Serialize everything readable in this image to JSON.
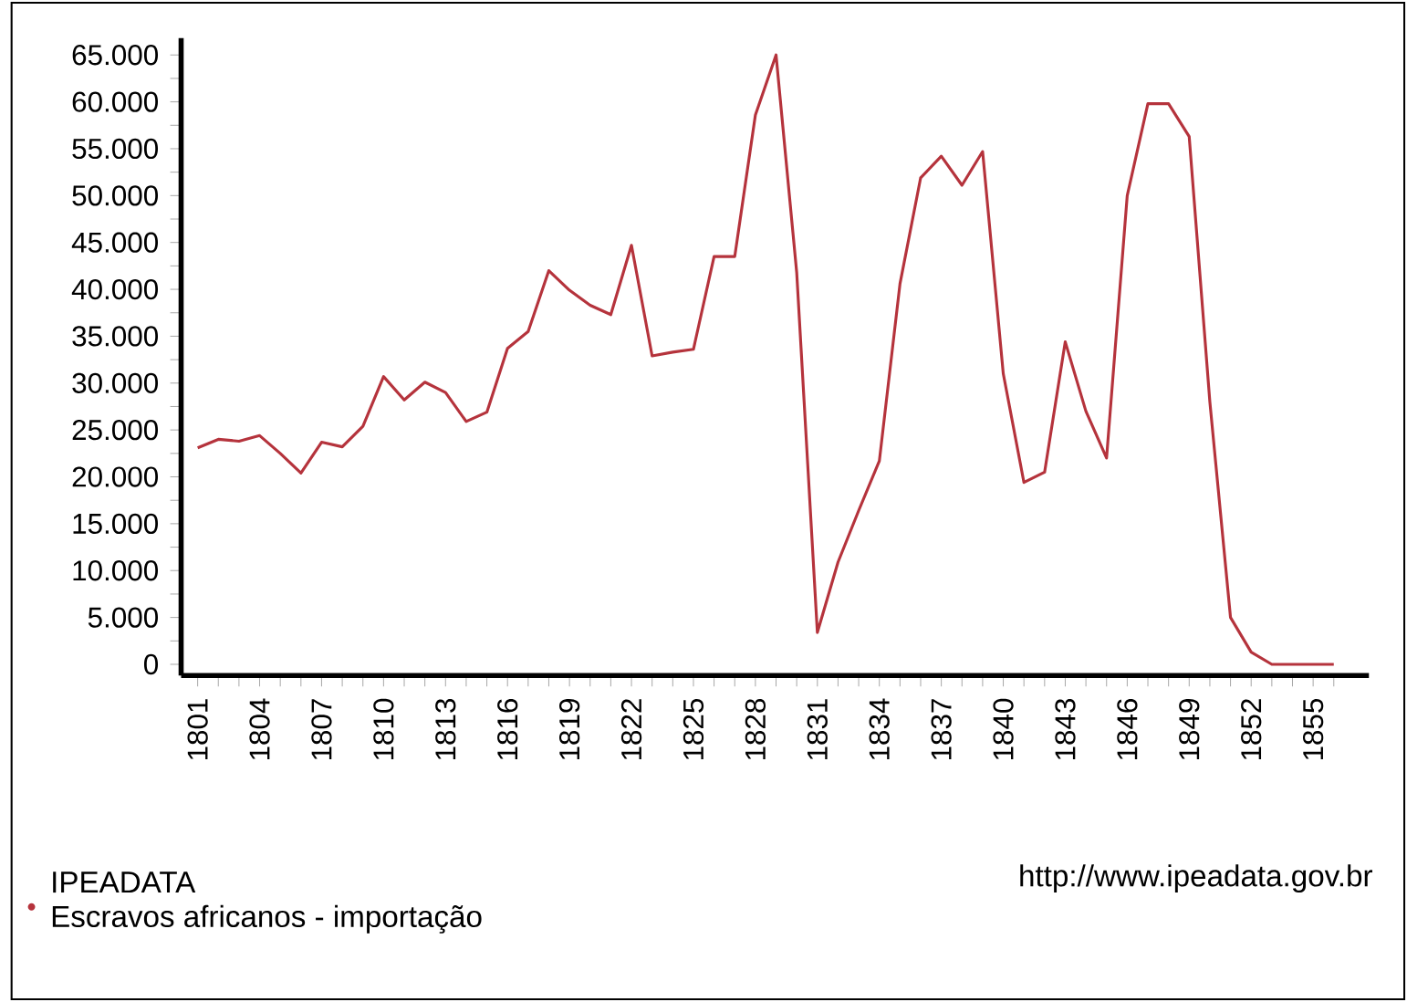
{
  "chart_data": {
    "type": "line",
    "legend_title": "IPEADATA",
    "legend": "bottom left",
    "marker": "none",
    "line_style": "solid",
    "x": [
      1801,
      1802,
      1803,
      1804,
      1805,
      1806,
      1807,
      1808,
      1809,
      1810,
      1811,
      1812,
      1813,
      1814,
      1815,
      1816,
      1817,
      1818,
      1819,
      1820,
      1821,
      1822,
      1823,
      1824,
      1825,
      1826,
      1827,
      1828,
      1829,
      1830,
      1831,
      1832,
      1833,
      1834,
      1835,
      1836,
      1837,
      1838,
      1839,
      1840,
      1841,
      1842,
      1843,
      1844,
      1845,
      1846,
      1847,
      1848,
      1849,
      1850,
      1851,
      1852,
      1853,
      1854,
      1855,
      1856
    ],
    "series": [
      {
        "name": "Escravos africanos - importação",
        "color": "#b5333c",
        "values": [
          23100,
          24000,
          23800,
          24400,
          22500,
          20400,
          23700,
          23200,
          25400,
          30700,
          28200,
          30100,
          29000,
          25900,
          26900,
          33700,
          35500,
          42000,
          39900,
          38300,
          37300,
          44700,
          32900,
          33300,
          33600,
          43500,
          43500,
          58600,
          65000,
          41800,
          3400,
          10900,
          16400,
          21700,
          40600,
          51900,
          54200,
          51100,
          54700,
          31000,
          19400,
          20500,
          34400,
          27000,
          22000,
          50000,
          59800,
          59800,
          56300,
          28000,
          5000,
          1300,
          0,
          0,
          0,
          0
        ]
      }
    ],
    "xlim": [
      1800.2,
      1857.7
    ],
    "ylim": [
      -1200,
      66800
    ],
    "xticks": [
      {
        "value": 1801,
        "label": "1801"
      },
      {
        "value": 1802,
        "label": null
      },
      {
        "value": 1803,
        "label": null
      },
      {
        "value": 1804,
        "label": "1804"
      },
      {
        "value": 1805,
        "label": null
      },
      {
        "value": 1806,
        "label": null
      },
      {
        "value": 1807,
        "label": "1807"
      },
      {
        "value": 1808,
        "label": null
      },
      {
        "value": 1809,
        "label": null
      },
      {
        "value": 1810,
        "label": "1810"
      },
      {
        "value": 1811,
        "label": null
      },
      {
        "value": 1812,
        "label": null
      },
      {
        "value": 1813,
        "label": "1813"
      },
      {
        "value": 1814,
        "label": null
      },
      {
        "value": 1815,
        "label": null
      },
      {
        "value": 1816,
        "label": "1816"
      },
      {
        "value": 1817,
        "label": null
      },
      {
        "value": 1818,
        "label": null
      },
      {
        "value": 1819,
        "label": "1819"
      },
      {
        "value": 1820,
        "label": null
      },
      {
        "value": 1821,
        "label": null
      },
      {
        "value": 1822,
        "label": "1822"
      },
      {
        "value": 1823,
        "label": null
      },
      {
        "value": 1824,
        "label": null
      },
      {
        "value": 1825,
        "label": "1825"
      },
      {
        "value": 1826,
        "label": null
      },
      {
        "value": 1827,
        "label": null
      },
      {
        "value": 1828,
        "label": "1828"
      },
      {
        "value": 1829,
        "label": null
      },
      {
        "value": 1830,
        "label": null
      },
      {
        "value": 1831,
        "label": "1831"
      },
      {
        "value": 1832,
        "label": null
      },
      {
        "value": 1833,
        "label": null
      },
      {
        "value": 1834,
        "label": "1834"
      },
      {
        "value": 1835,
        "label": null
      },
      {
        "value": 1836,
        "label": null
      },
      {
        "value": 1837,
        "label": "1837"
      },
      {
        "value": 1838,
        "label": null
      },
      {
        "value": 1839,
        "label": null
      },
      {
        "value": 1840,
        "label": "1840"
      },
      {
        "value": 1841,
        "label": null
      },
      {
        "value": 1842,
        "label": null
      },
      {
        "value": 1843,
        "label": "1843"
      },
      {
        "value": 1844,
        "label": null
      },
      {
        "value": 1845,
        "label": null
      },
      {
        "value": 1846,
        "label": "1846"
      },
      {
        "value": 1847,
        "label": null
      },
      {
        "value": 1848,
        "label": null
      },
      {
        "value": 1849,
        "label": "1849"
      },
      {
        "value": 1850,
        "label": null
      },
      {
        "value": 1851,
        "label": null
      },
      {
        "value": 1852,
        "label": "1852"
      },
      {
        "value": 1853,
        "label": null
      },
      {
        "value": 1854,
        "label": null
      },
      {
        "value": 1855,
        "label": "1855"
      },
      {
        "value": 1856,
        "label": null
      }
    ],
    "yticks": [
      {
        "value": 0,
        "label": "0"
      },
      {
        "value": 2500,
        "label": null
      },
      {
        "value": 5000,
        "label": "5.000"
      },
      {
        "value": 7500,
        "label": null
      },
      {
        "value": 10000,
        "label": "10.000"
      },
      {
        "value": 12500,
        "label": null
      },
      {
        "value": 15000,
        "label": "15.000"
      },
      {
        "value": 17500,
        "label": null
      },
      {
        "value": 20000,
        "label": "20.000"
      },
      {
        "value": 22500,
        "label": null
      },
      {
        "value": 25000,
        "label": "25.000"
      },
      {
        "value": 27500,
        "label": null
      },
      {
        "value": 30000,
        "label": "30.000"
      },
      {
        "value": 32500,
        "label": null
      },
      {
        "value": 35000,
        "label": "35.000"
      },
      {
        "value": 37500,
        "label": null
      },
      {
        "value": 40000,
        "label": "40.000"
      },
      {
        "value": 42500,
        "label": null
      },
      {
        "value": 45000,
        "label": "45.000"
      },
      {
        "value": 47500,
        "label": null
      },
      {
        "value": 50000,
        "label": "50.000"
      },
      {
        "value": 52500,
        "label": null
      },
      {
        "value": 55000,
        "label": "55.000"
      },
      {
        "value": 57500,
        "label": null
      },
      {
        "value": 60000,
        "label": "60.000"
      },
      {
        "value": 62500,
        "label": null
      },
      {
        "value": 65000,
        "label": "65.000"
      }
    ],
    "annotations": [
      "http://www.ipeadata.gov.br"
    ]
  }
}
